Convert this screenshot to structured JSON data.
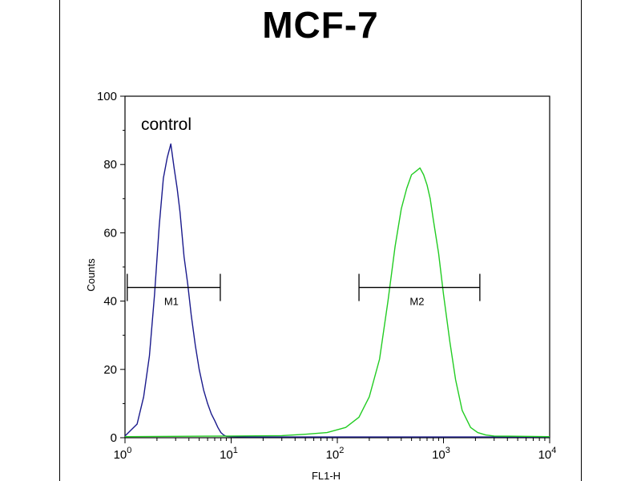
{
  "chart_data": {
    "type": "line",
    "title": "MCF-7",
    "xlabel": "FL1-H",
    "ylabel": "Counts",
    "x_scale": "log",
    "xlim": [
      1,
      10000
    ],
    "ylim": [
      0,
      100
    ],
    "grid": false,
    "y_ticks": [
      "0",
      "20",
      "40",
      "60",
      "80",
      "100"
    ],
    "x_ticks": [
      {
        "base": "10",
        "exp": "0"
      },
      {
        "base": "10",
        "exp": "1"
      },
      {
        "base": "10",
        "exp": "2"
      },
      {
        "base": "10",
        "exp": "3"
      },
      {
        "base": "10",
        "exp": "4"
      }
    ],
    "annotation": "control",
    "series": [
      {
        "color": "#1a1a8c",
        "x": [
          1.0,
          1.3,
          1.5,
          1.7,
          1.9,
          2.1,
          2.3,
          2.5,
          2.7,
          2.9,
          3.1,
          3.3,
          3.6,
          3.9,
          4.2,
          4.6,
          5.0,
          5.5,
          6.0,
          6.5,
          7.0,
          7.5,
          8.0,
          8.5,
          9.0,
          10.0,
          15,
          100,
          1000,
          10000
        ],
        "y": [
          0.5,
          4,
          12,
          24,
          42,
          62,
          76,
          82,
          86,
          79,
          73,
          66,
          53,
          45,
          36,
          27,
          20,
          14,
          10,
          7,
          5,
          3,
          1.5,
          0.8,
          0.4,
          0.3,
          0.2,
          0.2,
          0.2,
          0.2
        ]
      },
      {
        "color": "#22cc22",
        "x": [
          1,
          10,
          30,
          50,
          80,
          120,
          160,
          200,
          250,
          300,
          350,
          400,
          450,
          500,
          550,
          600,
          650,
          700,
          750,
          800,
          900,
          1000,
          1150,
          1300,
          1500,
          1800,
          2100,
          2500,
          3000,
          10000
        ],
        "y": [
          0.3,
          0.5,
          0.6,
          1,
          1.5,
          3,
          6,
          12,
          23,
          40,
          56,
          67,
          73,
          77,
          78,
          79,
          77,
          74,
          70,
          64,
          54,
          42,
          28,
          17,
          8,
          3,
          1.5,
          0.8,
          0.5,
          0.3
        ]
      }
    ],
    "markers": [
      {
        "label": "M1",
        "x_start": 1.05,
        "x_end": 7.9,
        "y": 44
      },
      {
        "label": "M2",
        "x_start": 160,
        "x_end": 2200,
        "y": 44
      }
    ]
  }
}
